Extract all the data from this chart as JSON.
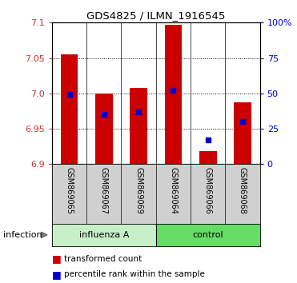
{
  "title": "GDS4825 / ILMN_1916545",
  "samples": [
    "GSM869065",
    "GSM869067",
    "GSM869069",
    "GSM869064",
    "GSM869066",
    "GSM869068"
  ],
  "bar_bottom": 6.9,
  "transformed_counts": [
    7.055,
    7.0,
    7.008,
    7.097,
    6.918,
    6.987
  ],
  "percentile_ranks": [
    49.5,
    35.0,
    37.0,
    52.0,
    17.0,
    30.0
  ],
  "ylim_left": [
    6.9,
    7.1
  ],
  "ylim_right": [
    0,
    100
  ],
  "yticks_left": [
    6.9,
    6.95,
    7.0,
    7.05,
    7.1
  ],
  "yticks_right": [
    0,
    25,
    50,
    75,
    100
  ],
  "ytick_labels_right": [
    "0",
    "25",
    "50",
    "75",
    "100%"
  ],
  "bar_color": "#cc0000",
  "percentile_color": "#0000cc",
  "infection_label": "infection",
  "legend_items": [
    "transformed count",
    "percentile rank within the sample"
  ],
  "influenza_color": "#c8f0c8",
  "control_color": "#66dd66",
  "sample_area_color": "#d0d0d0"
}
